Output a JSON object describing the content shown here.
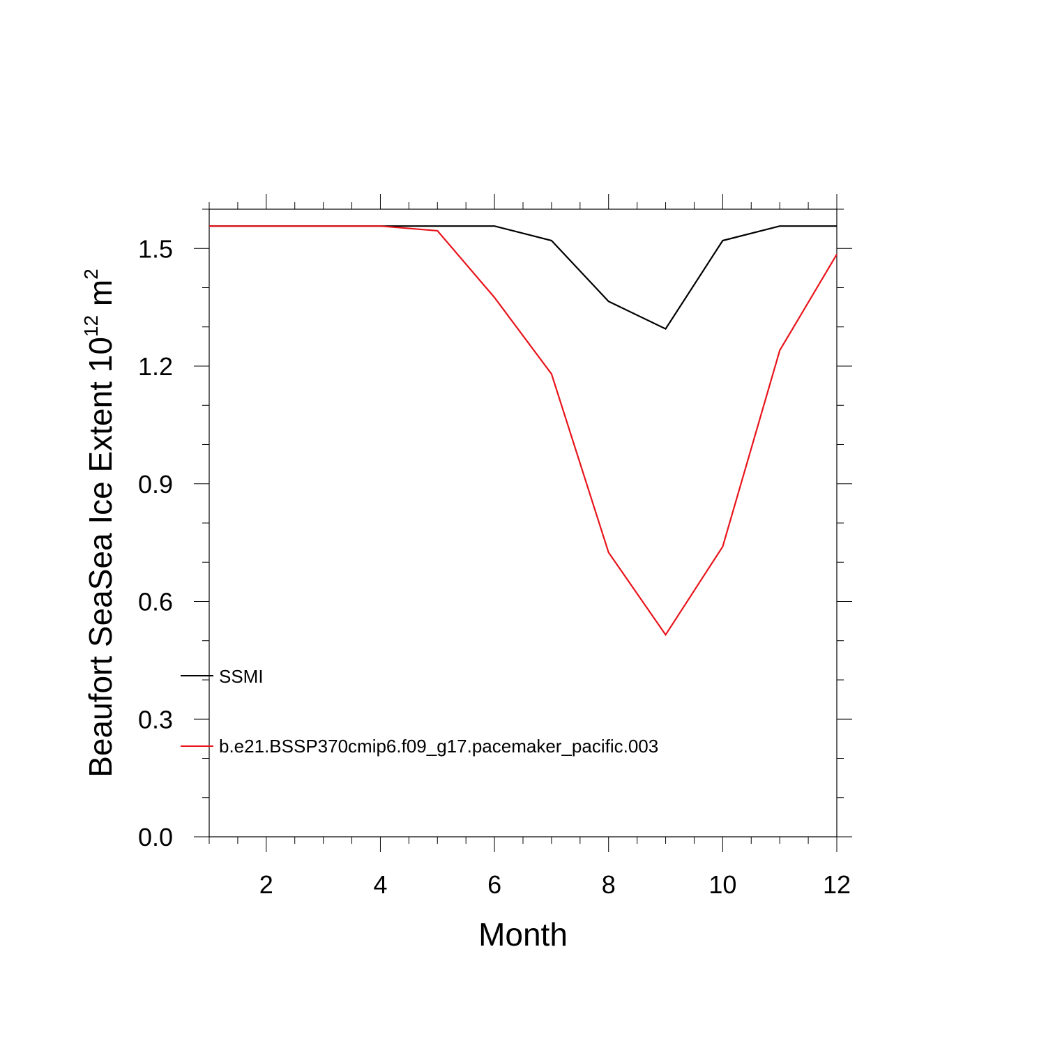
{
  "chart_data": {
    "type": "line",
    "xlabel": "Month",
    "ylabel": "Beaufort SeaSea Ice Extent 10",
    "ylabel_sup": "12",
    "ylabel_unit_main": " m",
    "ylabel_unit_sup": "2",
    "xlim": [
      1,
      12
    ],
    "ylim": [
      0.0,
      1.6
    ],
    "x_major_ticks": [
      2,
      4,
      6,
      8,
      10,
      12
    ],
    "x_tick_labels": [
      "2",
      "4",
      "6",
      "8",
      "10",
      "12"
    ],
    "y_major_ticks": [
      0.0,
      0.3,
      0.6,
      0.9,
      1.2,
      1.5
    ],
    "y_tick_labels": [
      "0.0",
      "0.3",
      "0.6",
      "0.9",
      "1.2",
      "1.5"
    ],
    "grid": false,
    "legend_placement": "lower-left",
    "x": [
      1,
      2,
      3,
      4,
      5,
      6,
      7,
      8,
      9,
      10,
      11,
      12
    ],
    "series": [
      {
        "name": "SSMI",
        "color": "#000000",
        "values": [
          1.557,
          1.557,
          1.557,
          1.557,
          1.557,
          1.557,
          1.52,
          1.365,
          1.295,
          1.52,
          1.557,
          1.557
        ]
      },
      {
        "name": "b.e21.BSSP370cmip6.f09_g17.pacemaker_pacific.003",
        "color": "#e8141b",
        "values": [
          1.557,
          1.557,
          1.557,
          1.557,
          1.545,
          1.375,
          1.18,
          0.725,
          0.515,
          0.74,
          1.24,
          1.485
        ]
      }
    ]
  }
}
